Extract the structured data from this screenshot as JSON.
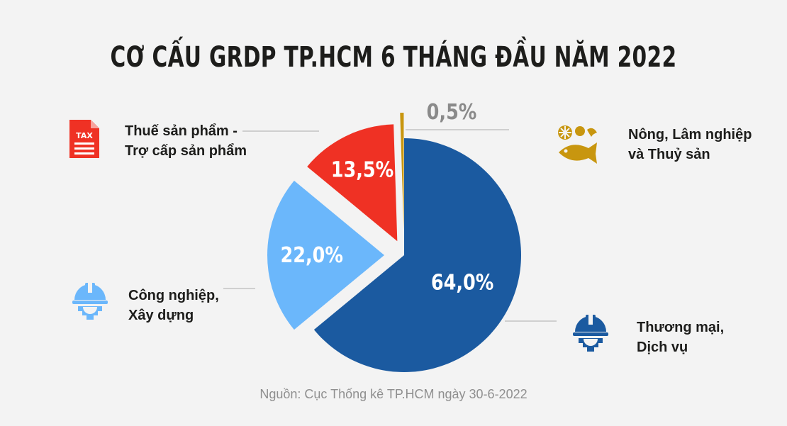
{
  "chart_data": {
    "type": "pie",
    "title": "CƠ CẤU GRDP TP.HCM 6 THÁNG ĐẦU NĂM 2022",
    "slices": [
      {
        "label_lines": [
          "Thương mại,",
          "Dịch vụ"
        ],
        "value": 64.0,
        "display": "64,0%",
        "color": "#1b5aa0"
      },
      {
        "label_lines": [
          "Công nghiệp,",
          "Xây dựng"
        ],
        "value": 22.0,
        "display": "22,0%",
        "color": "#6bb7fb"
      },
      {
        "label_lines": [
          "Thuế sản phẩm -",
          "Trợ cấp sản phẩm"
        ],
        "value": 13.5,
        "display": "13,5%",
        "color": "#ef3124"
      },
      {
        "label_lines": [
          "Nông, Lâm nghiệp",
          "và Thuỷ sản"
        ],
        "value": 0.5,
        "display": "0,5%",
        "color": "#c8960f"
      }
    ],
    "source": "Nguồn: Cục Thống kê TP.HCM ngày 30-6-2022"
  },
  "icons": {
    "services": "worker-helmet-gear-icon",
    "industry": "worker-helmet-gear-icon",
    "tax": "tax-document-icon",
    "agri": "fish-fruit-agriculture-icon"
  },
  "tax_icon_text": "TAX"
}
